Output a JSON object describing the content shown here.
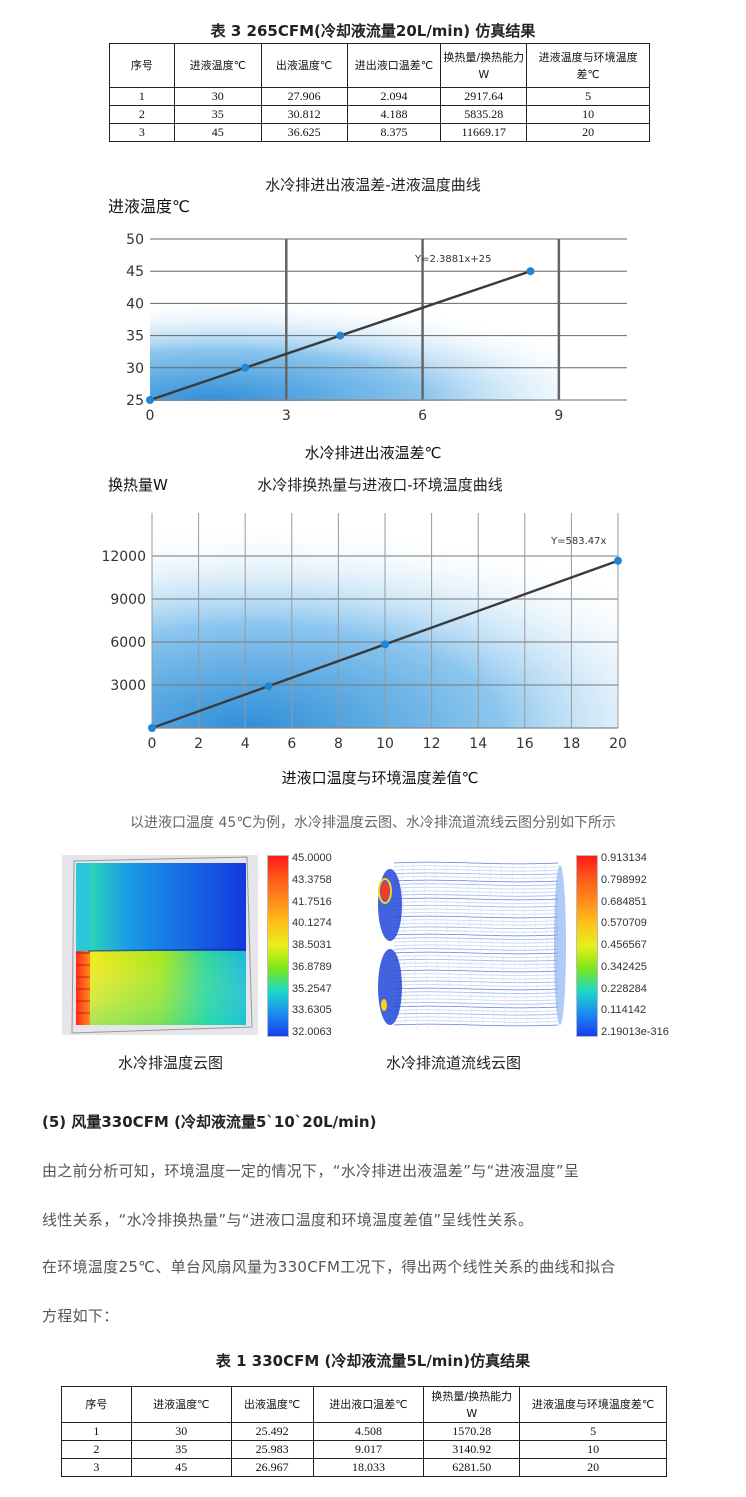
{
  "table3": {
    "caption": "表 3  265CFM(冷却液流量20L/min) 仿真结果",
    "headers": [
      "序号",
      "进液温度℃",
      "出液温度℃",
      "进出液口温差℃",
      "换热量/换热能力 W",
      "进液温度与环境温度差℃"
    ],
    "rows": [
      [
        "1",
        "30",
        "27.906",
        "2.094",
        "2917.64",
        "5"
      ],
      [
        "2",
        "35",
        "30.812",
        "4.188",
        "5835.28",
        "10"
      ],
      [
        "3",
        "45",
        "36.625",
        "8.375",
        "11669.17",
        "20"
      ]
    ]
  },
  "charts_text": {
    "chart1_title": "水冷排进出液温差-进液温度曲线",
    "chart1_ylabel": "进液温度℃",
    "chart1_xlabel": "水冷排进出液温差℃",
    "chart1_equation": "Y=2.3881x+25",
    "chart2_title": "水冷排换热量与进液口-环境温度曲线",
    "chart2_ylabel": "换热量W",
    "chart2_xlabel": "进液口温度与环境温度差值℃",
    "chart2_equation": "Y=583.47x"
  },
  "chart_data": [
    {
      "type": "line",
      "title": "水冷排进出液温差-进液温度曲线",
      "xlabel": "水冷排进出液温差℃",
      "ylabel": "进液温度℃",
      "x": [
        0,
        2.094,
        4.188,
        8.375
      ],
      "series": [
        {
          "values": [
            25,
            30,
            35,
            45
          ]
        }
      ],
      "xlim": [
        0,
        10.5
      ],
      "ylim": [
        25,
        50
      ],
      "xticks": [
        0,
        3,
        6,
        9
      ],
      "yticks": [
        25,
        30,
        35,
        40,
        45,
        50
      ],
      "annotation": "Y=2.3881x+25",
      "grid": true
    },
    {
      "type": "line",
      "title": "水冷排换热量与进液口-环境温度曲线",
      "xlabel": "进液口温度与环境温度差值℃",
      "ylabel": "换热量W",
      "x": [
        0,
        5,
        10,
        20
      ],
      "series": [
        {
          "values": [
            0,
            2917.64,
            5835.28,
            11669.17
          ]
        }
      ],
      "xlim": [
        0,
        20
      ],
      "ylim": [
        0,
        15000
      ],
      "xticks": [
        0,
        2,
        4,
        6,
        8,
        10,
        12,
        14,
        16,
        18,
        20
      ],
      "yticks": [
        3000,
        6000,
        9000,
        12000
      ],
      "annotation": "Y=583.47x",
      "grid": true
    }
  ],
  "intro_text": "以进液口温度 45℃为例，水冷排温度云图、水冷排流道流线云图分别如下所示",
  "temp_contour": {
    "caption": "水冷排温度云图",
    "legend": [
      "45.0000",
      "43.3758",
      "41.7516",
      "40.1274",
      "38.5031",
      "36.8789",
      "35.2547",
      "33.6305",
      "32.0063"
    ],
    "legend_colors": [
      "#ff1a1a",
      "#ff5a1a",
      "#ff8c1a",
      "#ffc21a",
      "#e6f01a",
      "#7de61a",
      "#1ad9c8",
      "#1a8cf0",
      "#1a3cf0"
    ]
  },
  "flow_contour": {
    "caption": "水冷排流道流线云图",
    "legend": [
      "0.913134",
      "0.798992",
      "0.684851",
      "0.570709",
      "0.456567",
      "0.342425",
      "0.228284",
      "0.114142",
      "2.19013e-316"
    ],
    "legend_colors": [
      "#ff1a1a",
      "#ff5a1a",
      "#ff8c1a",
      "#ffc21a",
      "#e6f01a",
      "#7de61a",
      "#1ad9c8",
      "#1a8cf0",
      "#1a3cf0"
    ]
  },
  "section5": {
    "heading": "(5) 风量330CFM (冷却液流量5`10`20L/min)",
    "para1_line1": "由之前分析可知，环境温度一定的情况下，“水冷排进出液温差”与“进液温度”呈",
    "para1_line2": "线性关系，“水冷排换热量”与“进液口温度和环境温度差值”呈线性关系。",
    "para2_line1": "在环境温度25℃、单台风扇风量为330CFM工况下，得出两个线性关系的曲线和拟合",
    "para2_line2": "方程如下："
  },
  "table1": {
    "caption": "表 1  330CFM (冷却液流量5L/min)仿真结果",
    "headers": [
      "序号",
      "进液温度℃",
      "出液温度℃",
      "进出液口温差℃",
      "换热量/换热能力 W",
      "进液温度与环境温度差℃"
    ],
    "rows": [
      [
        "1",
        "30",
        "25.492",
        "4.508",
        "1570.28",
        "5"
      ],
      [
        "2",
        "35",
        "25.983",
        "9.017",
        "3140.92",
        "10"
      ],
      [
        "3",
        "45",
        "26.967",
        "18.033",
        "6281.50",
        "20"
      ]
    ]
  }
}
